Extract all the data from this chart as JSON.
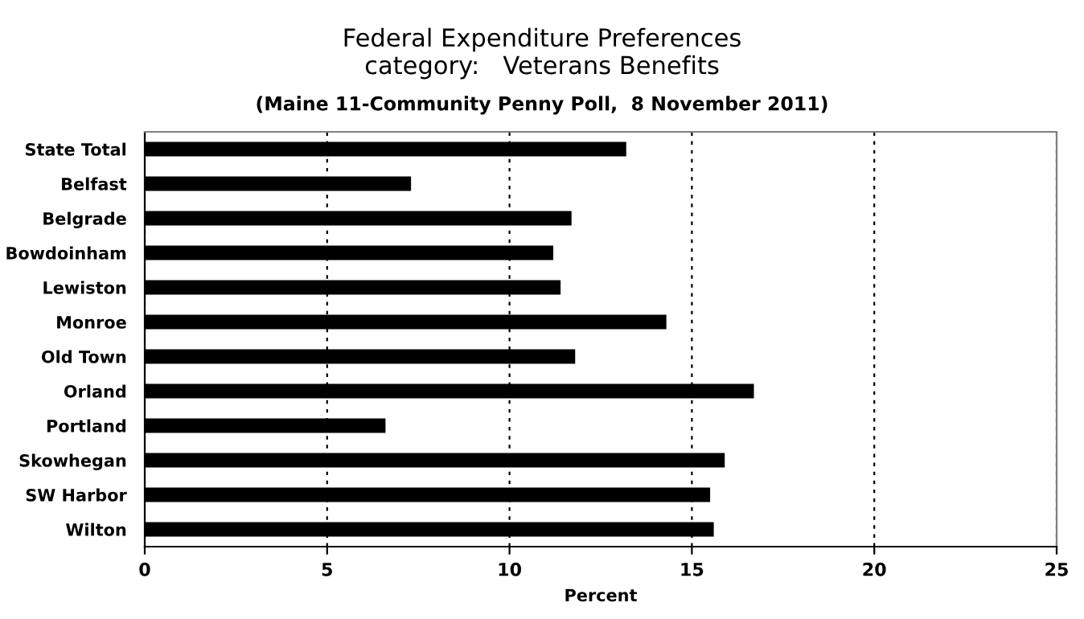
{
  "chart_data": {
    "type": "bar",
    "orientation": "horizontal",
    "title": "Federal Expenditure Preferences\ncategory:   Veterans Benefits",
    "subtitle": "(Maine 11-Community Penny Poll,  8 November 2011)",
    "xlabel": "Percent",
    "categories": [
      "State Total",
      "Belfast",
      "Belgrade",
      "Bowdoinham",
      "Lewiston",
      "Monroe",
      "Old Town",
      "Orland",
      "Portland",
      "Skowhegan",
      "SW Harbor",
      "Wilton"
    ],
    "values": [
      13.2,
      7.3,
      11.7,
      11.2,
      11.4,
      14.3,
      11.8,
      16.7,
      6.6,
      15.9,
      15.5,
      15.6
    ],
    "color": "#000000",
    "xlim": [
      0,
      25
    ],
    "xticks": [
      0,
      5,
      10,
      15,
      20,
      25
    ],
    "grid": "x",
    "legend": false
  }
}
